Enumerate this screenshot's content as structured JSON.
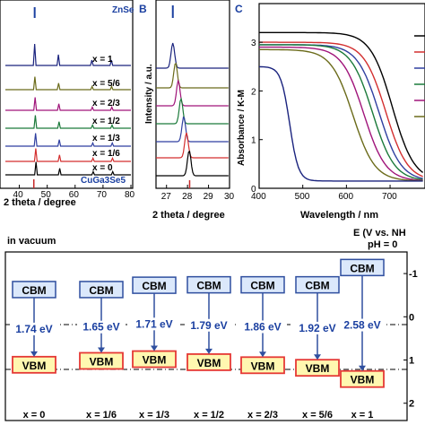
{
  "panel_letters": [
    "B",
    "C"
  ],
  "panel_a": {
    "xlabel": "2 theta / degree",
    "xticks": [
      "40",
      "50",
      "60",
      "70",
      "80"
    ],
    "top_label": "ZnSe",
    "bottom_label": "CuGa3Se5",
    "traces": [
      {
        "label": "x = 1",
        "color": "#1a237e"
      },
      {
        "label": "x = 5/6",
        "color": "#6b6b1a"
      },
      {
        "label": "x = 2/3",
        "color": "#a0147a"
      },
      {
        "label": "x = 1/2",
        "color": "#1b7a3a"
      },
      {
        "label": "x = 1/3",
        "color": "#2f3fa0"
      },
      {
        "label": "x = 1/6",
        "color": "#d32f2f"
      },
      {
        "label": "x = 0",
        "color": "#000000"
      }
    ]
  },
  "panel_b": {
    "ylabel": "Intensity / a.u.",
    "xlabel": "2 theta / degree",
    "xticks": [
      "27",
      "28",
      "29",
      "30"
    ]
  },
  "panel_c": {
    "ylabel": "Absorbance / K-M",
    "xlabel": "Wavelength / nm",
    "xticks": [
      "400",
      "500",
      "600",
      "700"
    ],
    "yticks": [
      "0",
      "1",
      "2",
      "3"
    ]
  },
  "chart_data": {
    "type": "bar",
    "title": "in vacuum",
    "right_axis_label": "E (V vs. NH",
    "right_axis_sub": "pH = 0",
    "right_ticks": [
      "-1",
      "0",
      "1",
      "2"
    ],
    "categories": [
      "x = 0",
      "x = 1/6",
      "x = 1/3",
      "x = 1/2",
      "x = 2/3",
      "x = 5/6",
      "x = 1"
    ],
    "series": [
      {
        "name": "band gap (eV)",
        "values": [
          1.74,
          1.65,
          1.71,
          1.79,
          1.86,
          1.92,
          2.58
        ]
      }
    ],
    "gap_labels": [
      "1.74 eV",
      "1.65 eV",
      "1.71 eV",
      "1.79 eV",
      "1.86 eV",
      "1.92 eV",
      "2.58 eV"
    ],
    "cbm_label": "CBM",
    "vbm_label": "VBM",
    "ylim": [
      -1.5,
      2.4
    ]
  }
}
